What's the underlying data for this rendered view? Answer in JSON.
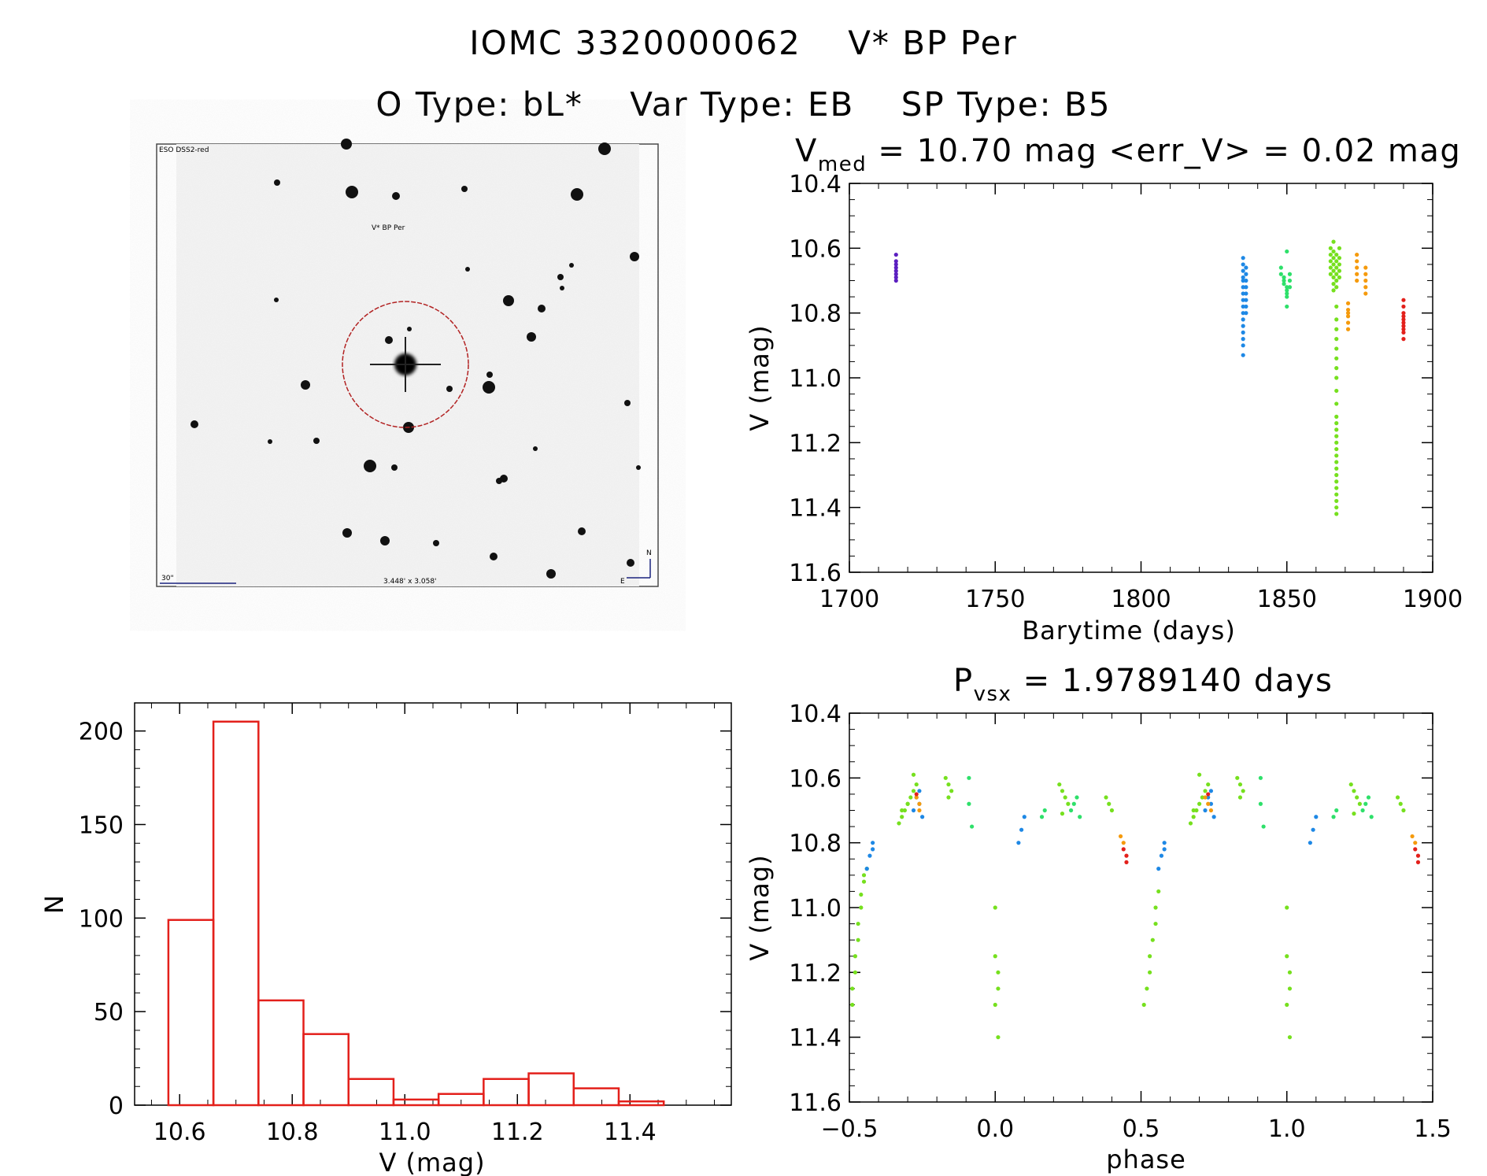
{
  "header": {
    "object_id": "IOMC 3320000062",
    "star_name": "V* BP Per",
    "o_type": "O Type: bL*",
    "var_type": "Var Type: EB",
    "sp_type": "SP Type: B5"
  },
  "finder": {
    "survey": "ESO DSS2-red",
    "target_label": "V* BP Per",
    "scale_label": "30\"",
    "fov_label": "3.448' x 3.058'",
    "north_label": "N",
    "east_label": "E"
  },
  "chart_data": [
    {
      "id": "lightcurve",
      "type": "scatter",
      "title_main": "V",
      "title_sub": "med",
      "title_rest": " = 10.70 mag <err_V> = 0.02 mag",
      "xlabel": "Barytime (days)",
      "ylabel": "V (mag)",
      "xlim": [
        1700,
        1900
      ],
      "ylim": [
        10.4,
        11.6
      ],
      "y_inverted": true,
      "xticks": [
        "1700",
        "1750",
        "1800",
        "1850",
        "1900"
      ],
      "yticks": [
        "10.4",
        "10.6",
        "10.8",
        "11.0",
        "11.2",
        "11.4",
        "11.6"
      ],
      "series": [
        {
          "color": "#5b1fc0",
          "x": [
            1716,
            1716,
            1716,
            1716,
            1716,
            1716,
            1716,
            1716
          ],
          "y": [
            10.62,
            10.64,
            10.65,
            10.66,
            10.67,
            10.68,
            10.69,
            10.7
          ]
        },
        {
          "color": "#1e88e5",
          "x": [
            1835,
            1835,
            1835,
            1835,
            1835,
            1835,
            1835,
            1835,
            1835,
            1835,
            1835,
            1835,
            1835,
            1835,
            1835,
            1835,
            1836,
            1836,
            1836,
            1836,
            1836,
            1836,
            1836,
            1836
          ],
          "y": [
            10.63,
            10.65,
            10.67,
            10.69,
            10.7,
            10.72,
            10.74,
            10.76,
            10.78,
            10.8,
            10.82,
            10.84,
            10.86,
            10.88,
            10.9,
            10.93,
            10.66,
            10.68,
            10.7,
            10.72,
            10.74,
            10.76,
            10.78,
            10.8
          ]
        },
        {
          "color": "#2ee06a",
          "x": [
            1848,
            1848,
            1849,
            1849,
            1849,
            1850,
            1850,
            1850,
            1850,
            1851,
            1851,
            1851,
            1850,
            1850
          ],
          "y": [
            10.66,
            10.68,
            10.69,
            10.7,
            10.71,
            10.72,
            10.73,
            10.74,
            10.75,
            10.68,
            10.7,
            10.72,
            10.61,
            10.78
          ]
        },
        {
          "color": "#76e01e",
          "x": [
            1865,
            1865,
            1865,
            1865,
            1865,
            1866,
            1866,
            1866,
            1866,
            1866,
            1866,
            1866,
            1866,
            1867,
            1867,
            1867,
            1867,
            1867,
            1867,
            1868,
            1868,
            1868,
            1868,
            1868,
            1867,
            1867,
            1867,
            1867,
            1867,
            1867,
            1867,
            1867,
            1867,
            1867,
            1867,
            1867,
            1867,
            1867,
            1867,
            1867,
            1867,
            1867,
            1867,
            1867,
            1867,
            1867,
            1867,
            1867,
            1867,
            1867
          ],
          "y": [
            10.6,
            10.62,
            10.64,
            10.66,
            10.68,
            10.58,
            10.61,
            10.63,
            10.65,
            10.67,
            10.69,
            10.71,
            10.73,
            10.62,
            10.64,
            10.66,
            10.68,
            10.7,
            10.72,
            10.6,
            10.63,
            10.65,
            10.67,
            10.69,
            10.85,
            10.88,
            10.91,
            10.94,
            10.97,
            11.0,
            11.04,
            11.08,
            11.12,
            11.14,
            11.16,
            11.18,
            11.2,
            11.22,
            11.24,
            11.26,
            11.28,
            11.3,
            11.32,
            11.34,
            11.36,
            11.38,
            11.4,
            11.42,
            10.82,
            10.78
          ]
        },
        {
          "color": "#f59a0c",
          "x": [
            1871,
            1871,
            1871,
            1871,
            1871,
            1871,
            1874,
            1874,
            1874,
            1874,
            1874,
            1877,
            1877,
            1877,
            1877,
            1877
          ],
          "y": [
            10.77,
            10.79,
            10.81,
            10.83,
            10.85,
            10.8,
            10.62,
            10.64,
            10.66,
            10.68,
            10.7,
            10.66,
            10.68,
            10.7,
            10.72,
            10.74
          ]
        },
        {
          "color": "#e3201b",
          "x": [
            1890,
            1890,
            1890,
            1890,
            1890,
            1890,
            1890,
            1890,
            1890,
            1890
          ],
          "y": [
            10.76,
            10.78,
            10.8,
            10.81,
            10.82,
            10.83,
            10.84,
            10.85,
            10.86,
            10.88
          ]
        }
      ]
    },
    {
      "id": "histogram",
      "type": "bar",
      "xlabel": "V (mag)",
      "ylabel": "N",
      "xlim": [
        10.52,
        11.58
      ],
      "ylim": [
        0,
        215
      ],
      "color": "#e3201b",
      "xticks": [
        "10.6",
        "10.8",
        "11.0",
        "11.2",
        "11.4"
      ],
      "yticks": [
        "0",
        "50",
        "100",
        "150",
        "200"
      ],
      "bin_edges": [
        10.58,
        10.66,
        10.74,
        10.82,
        10.9,
        10.98,
        11.06,
        11.14,
        11.22,
        11.3,
        11.38,
        11.46
      ],
      "values": [
        99,
        205,
        56,
        38,
        14,
        3,
        6,
        14,
        17,
        9,
        2
      ]
    },
    {
      "id": "phased",
      "type": "scatter",
      "title_main": "P",
      "title_sub": "vsx",
      "title_rest": " = 1.9789140 days",
      "xlabel": "phase",
      "ylabel": "V (mag)",
      "xlim": [
        -0.5,
        1.5
      ],
      "ylim": [
        10.4,
        11.6
      ],
      "y_inverted": true,
      "xticks": [
        "−0.5",
        "0.0",
        "0.5",
        "1.0",
        "1.5"
      ],
      "yticks": [
        "10.4",
        "10.6",
        "10.8",
        "11.0",
        "11.2",
        "11.4",
        "11.6"
      ],
      "series": [
        {
          "color": "#76e01e",
          "x": [
            -0.49,
            -0.49,
            -0.48,
            -0.48,
            -0.47,
            -0.47,
            -0.46,
            -0.46,
            -0.45,
            -0.45,
            -0.44,
            -0.33,
            -0.32,
            -0.31,
            -0.3,
            -0.29,
            -0.28,
            -0.27,
            -0.32,
            -0.3,
            -0.28,
            -0.17,
            -0.16,
            -0.15,
            -0.16,
            0.0,
            0.0,
            0.01,
            0.01,
            0.0,
            0.01,
            0.22,
            0.23,
            0.24,
            0.25,
            0.23,
            0.38,
            0.39,
            0.4,
            0.51,
            0.52,
            0.53,
            0.53,
            0.54,
            0.55,
            0.55,
            0.56,
            0.67,
            0.68,
            0.69,
            0.7,
            0.71,
            0.72,
            0.73,
            0.68,
            0.7,
            0.83,
            0.84,
            0.85,
            0.84,
            1.0,
            1.0,
            1.01,
            1.01,
            1.0,
            1.01,
            1.22,
            1.23,
            1.24,
            1.25,
            1.23,
            1.38,
            1.39,
            1.4
          ],
          "y": [
            11.3,
            11.25,
            11.2,
            11.15,
            11.1,
            11.05,
            11.0,
            10.96,
            10.92,
            10.9,
            10.88,
            10.74,
            10.72,
            10.7,
            10.68,
            10.66,
            10.64,
            10.62,
            10.7,
            10.68,
            10.59,
            10.6,
            10.62,
            10.64,
            10.66,
            11.0,
            11.15,
            11.2,
            11.25,
            11.3,
            11.4,
            10.62,
            10.64,
            10.66,
            10.68,
            10.71,
            10.66,
            10.68,
            10.7,
            11.3,
            11.25,
            11.2,
            11.15,
            11.1,
            11.05,
            11.0,
            10.95,
            10.74,
            10.72,
            10.7,
            10.68,
            10.66,
            10.64,
            10.62,
            10.7,
            10.59,
            10.6,
            10.62,
            10.64,
            10.66,
            11.0,
            11.15,
            11.2,
            11.25,
            11.3,
            11.4,
            10.62,
            10.64,
            10.66,
            10.68,
            10.71,
            10.66,
            10.68,
            10.7
          ]
        },
        {
          "color": "#2ee06a",
          "x": [
            -0.09,
            -0.09,
            -0.08,
            0.16,
            0.17,
            0.26,
            0.27,
            0.28,
            0.29,
            0.91,
            0.91,
            0.92,
            1.16,
            1.17,
            1.26,
            1.27,
            1.28,
            1.29
          ],
          "y": [
            10.6,
            10.68,
            10.75,
            10.72,
            10.7,
            10.7,
            10.68,
            10.66,
            10.72,
            10.6,
            10.68,
            10.75,
            10.72,
            10.7,
            10.7,
            10.68,
            10.66,
            10.72
          ]
        },
        {
          "color": "#1e88e5",
          "x": [
            -0.44,
            -0.43,
            -0.42,
            -0.42,
            -0.28,
            -0.27,
            -0.26,
            -0.26,
            -0.25,
            0.08,
            0.09,
            0.1,
            0.56,
            0.57,
            0.58,
            0.58,
            0.72,
            0.73,
            0.74,
            0.74,
            0.75,
            1.08,
            1.09,
            1.1
          ],
          "y": [
            10.88,
            10.84,
            10.82,
            10.8,
            10.7,
            10.66,
            10.64,
            10.68,
            10.72,
            10.8,
            10.76,
            10.72,
            10.88,
            10.84,
            10.82,
            10.8,
            10.7,
            10.66,
            10.64,
            10.68,
            10.72,
            10.8,
            10.76,
            10.72
          ]
        },
        {
          "color": "#f59a0c",
          "x": [
            -0.27,
            -0.26,
            -0.26,
            0.72,
            0.73,
            0.74,
            0.44,
            0.43,
            1.44,
            1.43
          ],
          "y": [
            10.66,
            10.68,
            10.7,
            10.66,
            10.68,
            10.7,
            10.8,
            10.78,
            10.8,
            10.78
          ]
        },
        {
          "color": "#e3201b",
          "x": [
            -0.27,
            0.73,
            0.44,
            0.45,
            0.45,
            1.44,
            1.45,
            1.45
          ],
          "y": [
            10.65,
            10.65,
            10.82,
            10.84,
            10.86,
            10.82,
            10.84,
            10.86
          ]
        }
      ]
    }
  ]
}
